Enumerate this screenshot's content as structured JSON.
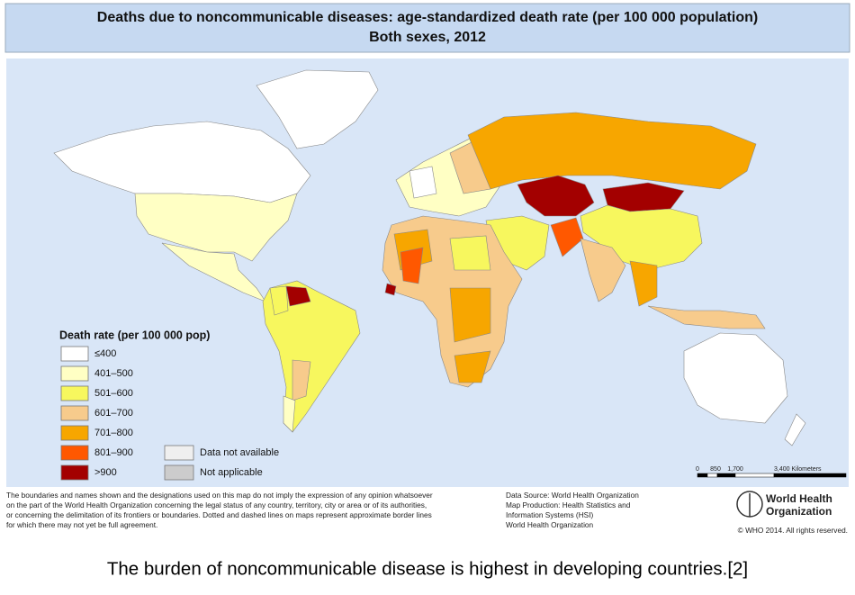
{
  "header": {
    "title": "Deaths due to noncommunicable diseases: age-standardized death rate (per 100 000 population)",
    "subtitle": "Both sexes, 2012"
  },
  "legend": {
    "title": "Death rate (per 100 000 pop)",
    "items": [
      {
        "label": "≤400",
        "color": "#ffffff"
      },
      {
        "label": "401–500",
        "color": "#ffffc4"
      },
      {
        "label": "501–600",
        "color": "#f7f75e"
      },
      {
        "label": "601–700",
        "color": "#f7cb8c"
      },
      {
        "label": "701–800",
        "color": "#f7a600"
      },
      {
        "label": "801–900",
        "color": "#ff5800"
      },
      {
        "label": ">900",
        "color": "#a30000"
      }
    ],
    "extra": [
      {
        "label": "Data not available",
        "color": "#efefef"
      },
      {
        "label": "Not applicable",
        "color": "#cccccc"
      }
    ]
  },
  "scale": {
    "labels": [
      "0",
      "850",
      "1,700",
      "3,400 Kilometers"
    ]
  },
  "disclaimer": [
    "The boundaries and names shown and the designations used on this map do not imply the expression of any opinion whatsoever",
    "on the part of the World Health Organization concerning the legal status of any country, territory, city or area or of its authorities,",
    "or concerning the delimitation of its frontiers or boundaries. Dotted and dashed lines on maps represent approximate border lines",
    "for which there may not yet be full agreement."
  ],
  "source": [
    "Data Source: World Health Organization",
    "Map Production: Health Statistics and",
    "Information Systems (HSI)",
    "World Health Organization"
  ],
  "organization": [
    "World Health",
    "Organization"
  ],
  "copyright": "© WHO 2014. All rights reserved.",
  "caption": "The burden of noncommunicable disease is highest in developing countries.[2]"
}
